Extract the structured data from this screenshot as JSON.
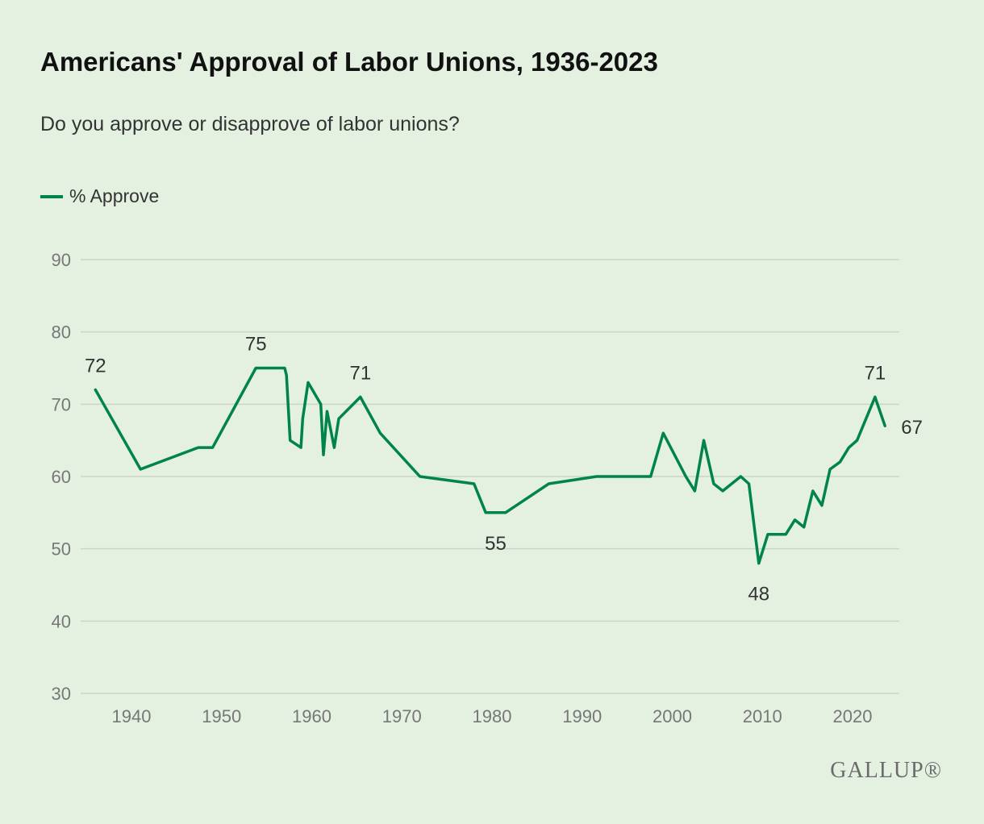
{
  "chart_data": {
    "type": "line",
    "title": "Americans' Approval of Labor Unions, 1936-2023",
    "subtitle": "Do you approve or disapprove of labor unions?",
    "xlabel": "",
    "ylabel": "",
    "xlim": [
      1934.5,
      2025.5
    ],
    "ylim": [
      30,
      90
    ],
    "yticks": [
      30,
      40,
      50,
      60,
      70,
      80,
      90
    ],
    "xticks": [
      1940,
      1950,
      1960,
      1970,
      1980,
      1990,
      2000,
      2010,
      2020
    ],
    "grid": true,
    "legend_position": "top-left",
    "color": "#00844a",
    "series": [
      {
        "name": "% Approve",
        "x": [
          1936,
          1941,
          1947.4,
          1949,
          1953.8,
          1957,
          1957.2,
          1957.6,
          1958.8,
          1959,
          1959.6,
          1961,
          1961.3,
          1961.7,
          1962.5,
          1963,
          1965.4,
          1967.6,
          1972,
          1978,
          1979.3,
          1981.5,
          1986.3,
          1991.6,
          1997.6,
          1999,
          2001.5,
          2002.5,
          2003.5,
          2004.6,
          2005.6,
          2007.6,
          2008.5,
          2009.6,
          2010.6,
          2012.6,
          2013.6,
          2014.6,
          2015.6,
          2016.6,
          2017.5,
          2018.6,
          2019.6,
          2020.5,
          2022.5,
          2023.6
        ],
        "values": [
          72,
          61,
          64,
          64,
          75,
          75,
          74,
          65,
          64,
          68,
          73,
          70,
          63,
          69,
          64,
          68,
          71,
          66,
          60,
          59,
          55,
          55,
          59,
          60,
          60,
          66,
          60,
          58,
          65,
          59,
          58,
          60,
          59,
          48,
          52,
          52,
          54,
          53,
          58,
          56,
          61,
          62,
          64,
          65,
          71,
          67
        ]
      }
    ],
    "annotations": [
      {
        "x": 1936,
        "y": 72,
        "text": "72",
        "pos": "above"
      },
      {
        "x": 1953.8,
        "y": 75,
        "text": "75",
        "pos": "above"
      },
      {
        "x": 1965.4,
        "y": 71,
        "text": "71",
        "pos": "above"
      },
      {
        "x": 1980.4,
        "y": 55,
        "text": "55",
        "pos": "below"
      },
      {
        "x": 2009.6,
        "y": 48,
        "text": "48",
        "pos": "below"
      },
      {
        "x": 2022.5,
        "y": 71,
        "text": "71",
        "pos": "above"
      },
      {
        "x": 2023.6,
        "y": 67,
        "text": "67",
        "pos": "right"
      }
    ]
  },
  "legend_label": "% Approve",
  "logo": "GALLUP®"
}
